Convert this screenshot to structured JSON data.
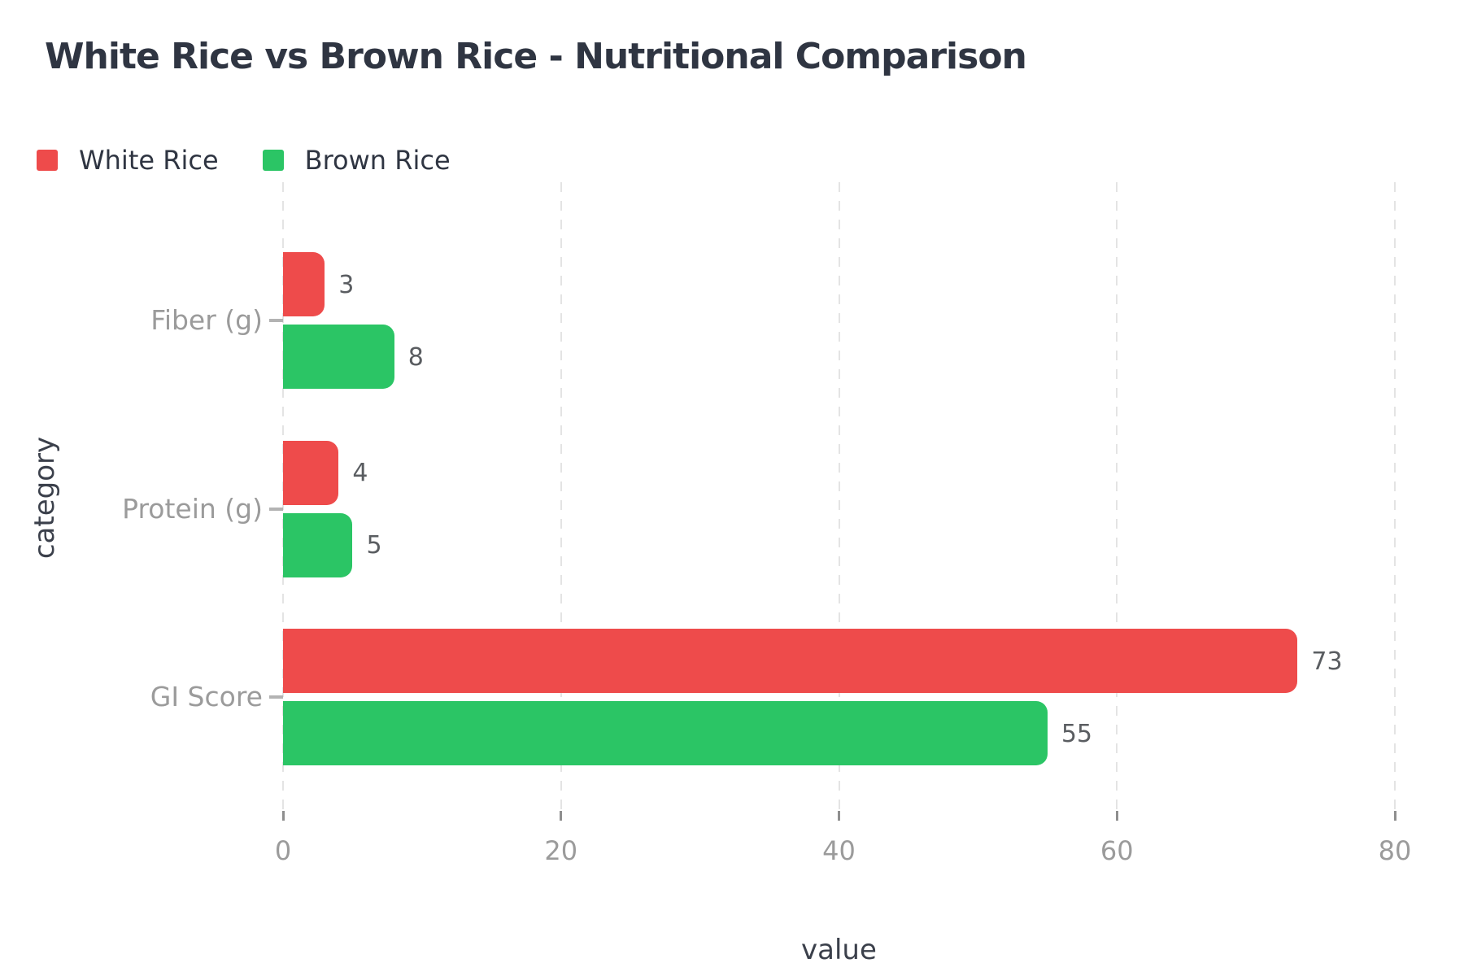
{
  "title": "White Rice vs Brown Rice - Nutritional Comparison",
  "legend": {
    "items": [
      {
        "label": "White Rice",
        "color": "#EE4B4B"
      },
      {
        "label": "Brown Rice",
        "color": "#2BC565"
      }
    ]
  },
  "chart_data": {
    "type": "bar",
    "orientation": "horizontal",
    "title": "White Rice vs Brown Rice - Nutritional Comparison",
    "categories": [
      "Fiber (g)",
      "Protein (g)",
      "GI Score"
    ],
    "series": [
      {
        "name": "White Rice",
        "color": "#EE4B4B",
        "values": [
          3,
          4,
          73
        ]
      },
      {
        "name": "Brown Rice",
        "color": "#2BC565",
        "values": [
          8,
          5,
          55
        ]
      }
    ],
    "xlabel": "value",
    "ylabel": "category",
    "xlim": [
      0,
      80
    ],
    "xticks": [
      0,
      20,
      40,
      60,
      80
    ],
    "grid": "vertical-dashed",
    "legend_position": "top-left",
    "bar_value_labels": true
  },
  "colors": {
    "background": "#ffffff",
    "title_text": "#2F3542",
    "axis_title_text": "#3b404b",
    "tick_label_text": "#9b9b9b",
    "bar_value_text": "#5a5d61",
    "gridline": "#e4e4e4",
    "white_rice_bar": "#EE4B4B",
    "brown_rice_bar": "#2BC565"
  }
}
